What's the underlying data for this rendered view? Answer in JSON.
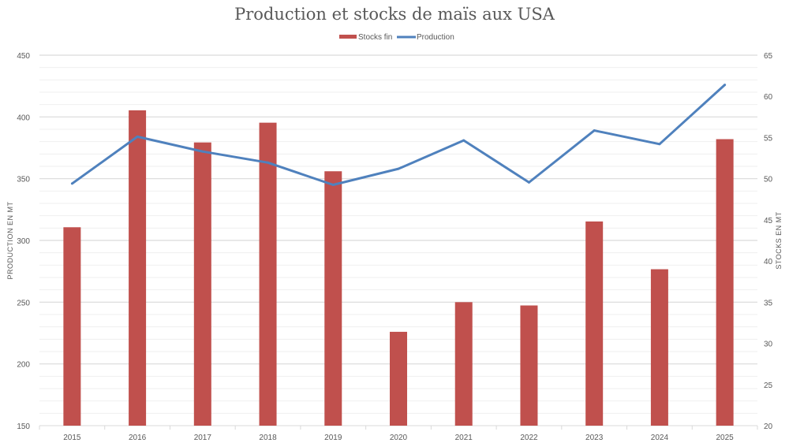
{
  "chart_data": {
    "type": "bar+line",
    "title": "Production et stocks de maïs aux USA",
    "categories": [
      "2015",
      "2016",
      "2017",
      "2018",
      "2019",
      "2020",
      "2021",
      "2022",
      "2023",
      "2024",
      "2025"
    ],
    "series": [
      {
        "name": "Stocks fin",
        "type": "bar",
        "axis": "right",
        "color": "#C0504D",
        "values": [
          44.1,
          58.3,
          54.4,
          56.8,
          50.9,
          31.4,
          35.0,
          34.6,
          44.8,
          39.0,
          54.8
        ]
      },
      {
        "name": "Production",
        "type": "line",
        "axis": "left",
        "color": "#4F81BD",
        "values": [
          346,
          384,
          372,
          363,
          345,
          358,
          381,
          347,
          389,
          378,
          426
        ]
      }
    ],
    "ylabel_left": "PRODUCTION EN MT",
    "ylabel_right": "STOCKS EN MT",
    "ylim_left": [
      150,
      450
    ],
    "yticks_left": [
      150,
      200,
      250,
      300,
      350,
      400,
      450
    ],
    "ylim_right": [
      20,
      65
    ],
    "yticks_right": [
      20,
      25,
      30,
      35,
      40,
      45,
      50,
      55,
      60,
      65
    ],
    "grid": true,
    "legend": "top-center"
  }
}
